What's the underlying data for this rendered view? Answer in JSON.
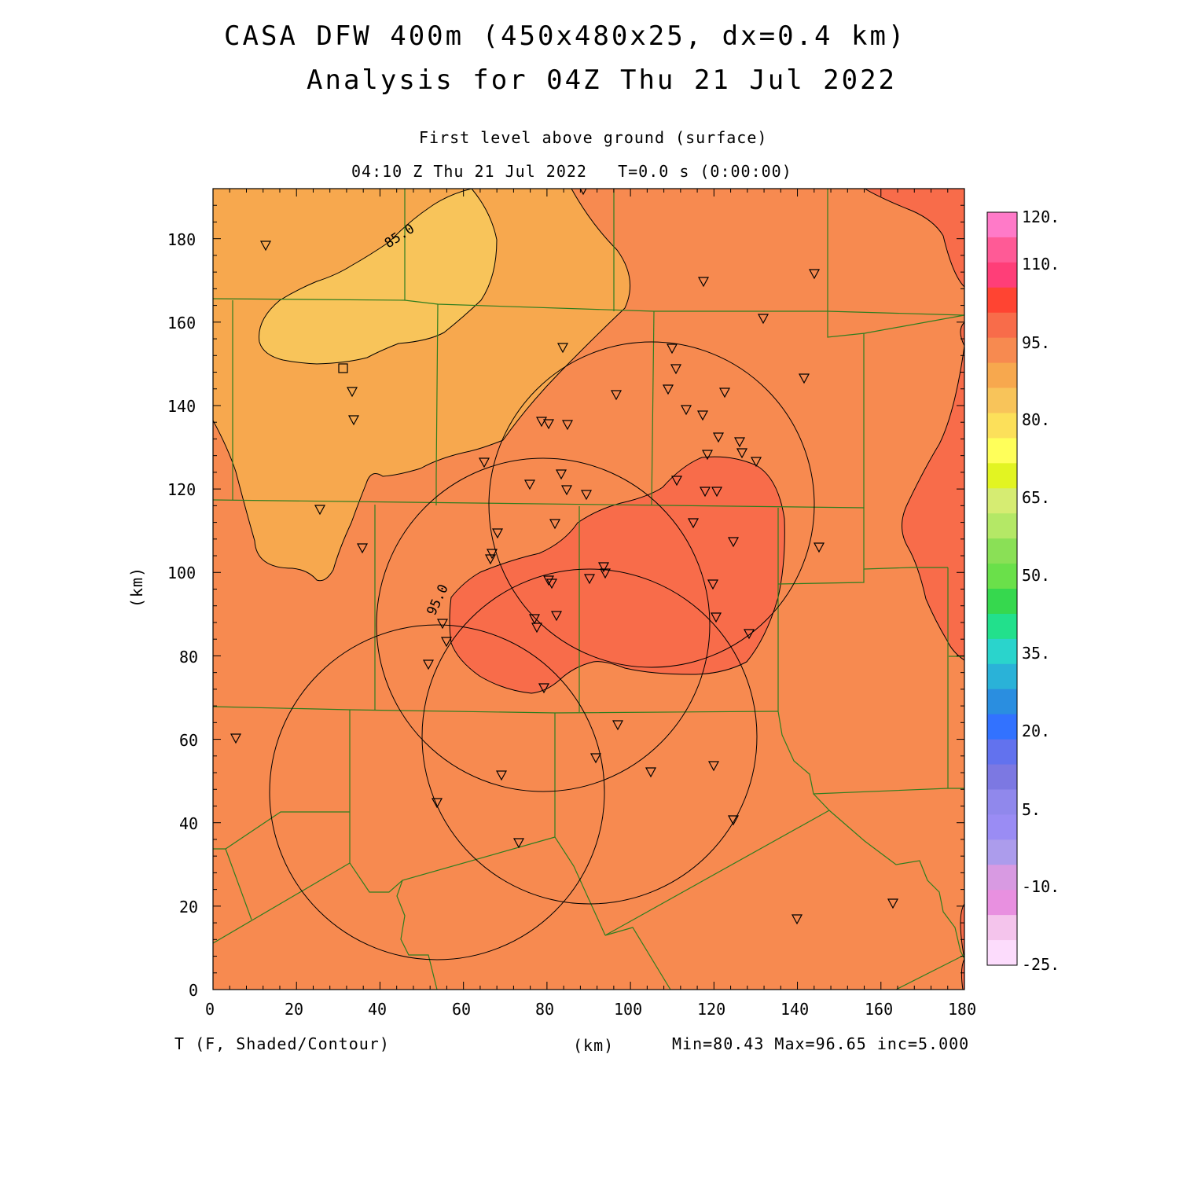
{
  "header": {
    "title_line1": "CASA DFW 400m (450x480x25, dx=0.4 km)",
    "title_line2": "Analysis for 04Z Thu 21 Jul 2022",
    "level": "First level above ground (surface)",
    "time": "04:10 Z Thu 21 Jul 2022   T=0.0 s (0:00:00)"
  },
  "axes": {
    "x_label": "(km)",
    "y_label": "(km)",
    "x_ticks": [
      "0",
      "20",
      "40",
      "60",
      "80",
      "100",
      "120",
      "140",
      "160",
      "180"
    ],
    "y_ticks": [
      "0",
      "20",
      "40",
      "60",
      "80",
      "100",
      "120",
      "140",
      "160",
      "180"
    ],
    "x_range": [
      0,
      180
    ],
    "y_range": [
      0,
      192
    ]
  },
  "footer": {
    "variable": "T (F, Shaded/Contour)",
    "stats": "Min=80.43 Max=96.65 inc=5.000"
  },
  "contour_labels": [
    "85.0",
    "95.0"
  ],
  "colorbar": {
    "labels": [
      "120.",
      "110.",
      "95.",
      "80.",
      "65.",
      "50.",
      "35.",
      "20.",
      "5.",
      "-10.",
      "-25."
    ],
    "colors": [
      "#ff7ac8",
      "#ff5a96",
      "#ff3e78",
      "#ff4432",
      "#f86c4a",
      "#f78a50",
      "#f7a84e",
      "#f8c45a",
      "#fce05a",
      "#ffff5a",
      "#e2f422",
      "#d6ec72",
      "#b4e866",
      "#8ae056",
      "#6ae04a",
      "#36d84e",
      "#22e08c",
      "#2ad4cc",
      "#2ab2d8",
      "#2a8ee0",
      "#3272ff",
      "#6272ee",
      "#7c78e2",
      "#9088ec",
      "#9a8cf4",
      "#ac9cec",
      "#d89ae2",
      "#e890e0",
      "#f4c4ec",
      "#fcdcfc"
    ]
  },
  "colors": {
    "shade_80_85": "#f8c45a",
    "shade_85_90": "#f7a84e",
    "shade_90_95": "#f78a50",
    "shade_95_100": "#f86c4a",
    "county_lines": "#2e7d1e",
    "contours_rings": "#000000"
  },
  "stations": {
    "triangle_count": 62,
    "square_count": 1
  }
}
